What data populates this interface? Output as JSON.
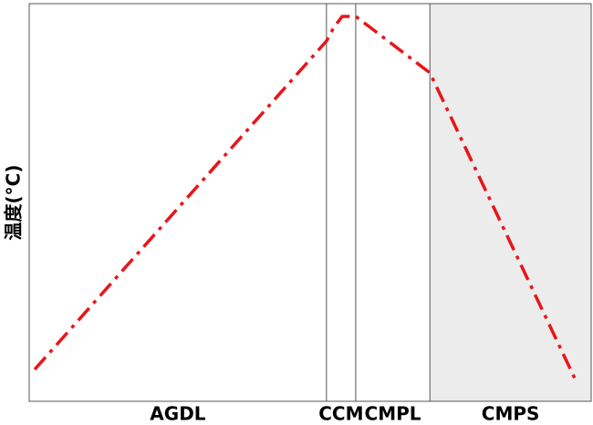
{
  "chart_data": {
    "type": "line",
    "y_label": "温度(°C)",
    "x": [
      0.97,
      52.9,
      54.2,
      55.7,
      58.1,
      71.3,
      97.1
    ],
    "series": [
      {
        "color": "#e8151b",
        "values": [
          8.0,
          90.6,
          94.0,
          96.8,
          96.8,
          82.6,
          5.7
        ]
      }
    ],
    "xlim": [
      0,
      100
    ],
    "ylim": [
      0,
      100
    ],
    "regions": [
      {
        "name": "AGDL",
        "start": 0,
        "end": 52.9,
        "shaded": false
      },
      {
        "name": "CCM",
        "start": 52.9,
        "end": 58.1,
        "shaded": false
      },
      {
        "name": "CMPL",
        "start": 58.1,
        "end": 71.3,
        "shaded": false
      },
      {
        "name": "CMPS",
        "start": 71.3,
        "end": 100,
        "shaded": true
      }
    ]
  }
}
